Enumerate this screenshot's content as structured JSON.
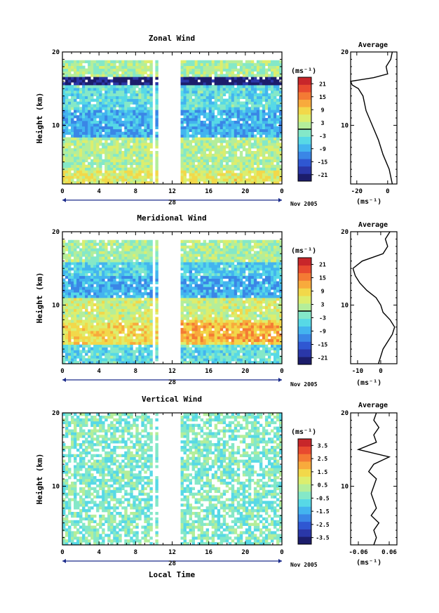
{
  "figure": {
    "date_label": "Nov 2005",
    "day_label": "28",
    "xlabel_bottom": "Local Time",
    "height_ylabel": "Height (km)",
    "unit_label": "(ms⁻¹)",
    "average_title": "Average",
    "xticks": [
      "0",
      "4",
      "8",
      "12",
      "16",
      "20",
      "0"
    ],
    "yticks": [
      "10",
      "20"
    ]
  },
  "panels": [
    {
      "title": "Zonal Wind",
      "colorbar_ticks": [
        "21",
        "15",
        "9",
        "3",
        "-3",
        "-9",
        "-15",
        "-21"
      ],
      "avg_xticks": [
        "-20",
        "0"
      ]
    },
    {
      "title": "Meridional Wind",
      "colorbar_ticks": [
        "21",
        "15",
        "9",
        "3",
        "-3",
        "-9",
        "-15",
        "-21"
      ],
      "avg_xticks": [
        "-10",
        "0"
      ]
    },
    {
      "title": "Vertical Wind",
      "colorbar_ticks": [
        "3.5",
        "2.5",
        "1.5",
        "0.5",
        "-0.5",
        "-1.5",
        "-2.5",
        "-3.5"
      ],
      "avg_xticks": [
        "-0.06",
        "0.06"
      ]
    }
  ],
  "palette": [
    "#1c1d6b",
    "#2a37a8",
    "#2f57d2",
    "#3a86e6",
    "#43b4ef",
    "#57d9e6",
    "#84e8c8",
    "#b4ee9a",
    "#dcee6e",
    "#f2d84a",
    "#f8aa3c",
    "#f47a34",
    "#e84a2f",
    "#c8262a"
  ],
  "chart_data": [
    {
      "type": "heatmap",
      "title": "Zonal Wind",
      "xlabel": "",
      "ylabel": "Height (km)",
      "xlim": [
        0,
        24
      ],
      "ylim": [
        2,
        20
      ],
      "x_unit": "Local Time (h)",
      "y_unit": "km",
      "colorbar": {
        "label": "(ms⁻¹)",
        "range": [
          -24,
          24
        ],
        "ticks": [
          21,
          15,
          9,
          3,
          -3,
          -9,
          -15,
          -21
        ]
      },
      "data_gaps_hours": [
        [
          9.8,
          10.2
        ],
        [
          10.6,
          12.8
        ]
      ],
      "description_layers": [
        {
          "height_km": [
            2,
            4
          ],
          "value": 6
        },
        {
          "height_km": [
            4,
            8.5
          ],
          "value": 2
        },
        {
          "height_km": [
            8.5,
            12
          ],
          "value": -9
        },
        {
          "height_km": [
            12,
            15.5
          ],
          "value": -4
        },
        {
          "height_km": [
            15.5,
            16.5
          ],
          "value": -22
        },
        {
          "height_km": [
            16.5,
            19
          ],
          "value": 1
        }
      ],
      "average_profile": {
        "xlim": [
          -24,
          6
        ],
        "xticks": [
          -20,
          0
        ],
        "height": [
          2,
          4,
          6,
          8,
          10,
          11,
          12,
          13,
          14,
          15,
          15.5,
          16,
          16.5,
          17,
          18,
          19,
          20
        ],
        "value": [
          3,
          1,
          -3,
          -6,
          -10,
          -12,
          -14,
          -15,
          -16,
          -19,
          -23,
          -24,
          -9,
          0,
          -1,
          2,
          3
        ]
      }
    },
    {
      "type": "heatmap",
      "title": "Meridional Wind",
      "xlabel": "",
      "ylabel": "Height (km)",
      "xlim": [
        0,
        24
      ],
      "ylim": [
        2,
        20
      ],
      "x_unit": "Local Time (h)",
      "y_unit": "km",
      "colorbar": {
        "label": "(ms⁻¹)",
        "range": [
          -24,
          24
        ],
        "ticks": [
          21,
          15,
          9,
          3,
          -3,
          -9,
          -15,
          -21
        ]
      },
      "data_gaps_hours": [
        [
          9.8,
          10.2
        ],
        [
          10.6,
          12.8
        ]
      ],
      "description_layers": [
        {
          "height_km": [
            2,
            4.5
          ],
          "value": -4
        },
        {
          "height_km": [
            4.5,
            7.5
          ],
          "value": 8
        },
        {
          "height_km": [
            7.5,
            11
          ],
          "value": 4
        },
        {
          "height_km": [
            11,
            14
          ],
          "value": -9
        },
        {
          "height_km": [
            14,
            16
          ],
          "value": -6
        },
        {
          "height_km": [
            16,
            19
          ],
          "value": 1
        }
      ],
      "average_profile": {
        "xlim": [
          -13,
          7
        ],
        "xticks": [
          -10,
          0
        ],
        "height": [
          2,
          4,
          6,
          7,
          8,
          9,
          10,
          11,
          12,
          13,
          14,
          15,
          16,
          17,
          18,
          19,
          20
        ],
        "value": [
          -1,
          1,
          5,
          6,
          4,
          1,
          0,
          -2,
          -6,
          -9,
          -11,
          -12,
          -8,
          1,
          3,
          2,
          4
        ]
      }
    },
    {
      "type": "heatmap",
      "title": "Vertical Wind",
      "xlabel": "Local Time",
      "ylabel": "Height (km)",
      "xlim": [
        0,
        24
      ],
      "ylim": [
        2,
        20
      ],
      "x_unit": "Local Time (h)",
      "y_unit": "km",
      "colorbar": {
        "label": "(ms⁻¹)",
        "range": [
          -4,
          4
        ],
        "ticks": [
          3.5,
          2.5,
          1.5,
          0.5,
          -0.5,
          -1.5,
          -2.5,
          -3.5
        ]
      },
      "data_gaps_hours": [
        [
          9.8,
          10.2
        ],
        [
          10.6,
          12.8
        ]
      ],
      "description_layers": [
        {
          "height_km": [
            2,
            20
          ],
          "value": -0.3
        }
      ],
      "average_profile": {
        "xlim": [
          -0.09,
          0.09
        ],
        "xticks": [
          -0.06,
          0.06
        ],
        "height": [
          2,
          3,
          4,
          5,
          6,
          7,
          8,
          9,
          10,
          11,
          12,
          13,
          14,
          15,
          16,
          17,
          18,
          19,
          20
        ],
        "value": [
          0.0,
          0.01,
          0.0,
          0.02,
          -0.01,
          0.01,
          0.0,
          -0.01,
          0.0,
          0.01,
          -0.02,
          0.0,
          0.06,
          -0.06,
          0.01,
          0.0,
          0.02,
          0.0,
          0.01
        ]
      }
    }
  ]
}
